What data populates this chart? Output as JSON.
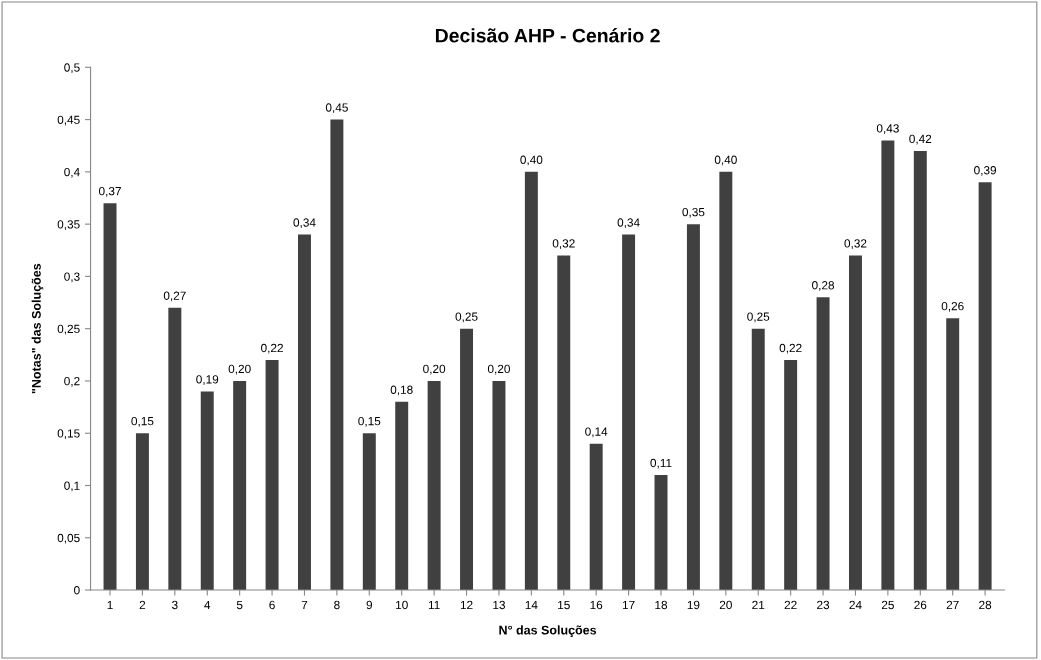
{
  "chart_data": {
    "type": "bar",
    "title": "Decisão AHP - Cenário 2",
    "xlabel": "N° das Soluções",
    "ylabel": "\"Notas\" das Soluções",
    "categories": [
      "1",
      "2",
      "3",
      "4",
      "5",
      "6",
      "7",
      "8",
      "9",
      "10",
      "11",
      "12",
      "13",
      "14",
      "15",
      "16",
      "17",
      "18",
      "19",
      "20",
      "21",
      "22",
      "23",
      "24",
      "25",
      "26",
      "27",
      "28"
    ],
    "values": [
      0.37,
      0.15,
      0.27,
      0.19,
      0.2,
      0.22,
      0.34,
      0.45,
      0.15,
      0.18,
      0.2,
      0.25,
      0.2,
      0.4,
      0.32,
      0.14,
      0.34,
      0.11,
      0.35,
      0.4,
      0.25,
      0.22,
      0.28,
      0.32,
      0.43,
      0.42,
      0.26,
      0.39
    ],
    "value_labels": [
      "0,37",
      "0,15",
      "0,27",
      "0,19",
      "0,20",
      "0,22",
      "0,34",
      "0,45",
      "0,15",
      "0,18",
      "0,20",
      "0,25",
      "0,20",
      "0,40",
      "0,32",
      "0,14",
      "0,34",
      "0,11",
      "0,35",
      "0,40",
      "0,25",
      "0,22",
      "0,28",
      "0,32",
      "0,43",
      "0,42",
      "0,26",
      "0,39"
    ],
    "color": "#404040",
    "ylim": [
      0,
      0.5
    ],
    "yticks": [
      0,
      {
        "value": 0.05,
        "label": "0,05"
      },
      {
        "value": 0.1,
        "label": "0,1"
      },
      {
        "value": 0.15,
        "label": "0,15"
      },
      {
        "value": 0.2,
        "label": "0,2"
      },
      {
        "value": 0.25,
        "label": "0,25"
      },
      {
        "value": 0.3,
        "label": "0,3"
      },
      {
        "value": 0.35,
        "label": "0,35"
      },
      {
        "value": 0.4,
        "label": "0,4"
      },
      {
        "value": 0.45,
        "label": "0,45"
      },
      {
        "value": 0.5,
        "label": "0,5"
      }
    ],
    "grid": false,
    "legend": false
  }
}
